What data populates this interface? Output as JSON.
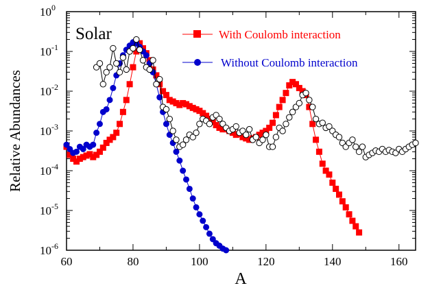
{
  "chart_data": {
    "type": "scatter",
    "xlabel": "A",
    "ylabel": "Relative Abundances",
    "xlim": [
      60,
      165
    ],
    "ylim": [
      1e-06,
      1
    ],
    "yscale": "log",
    "annotation": "Solar",
    "x_ticks": [
      "60",
      "80",
      "100",
      "120",
      "140",
      "160"
    ],
    "y_ticks": [
      {
        "base": "10",
        "exp": "0"
      },
      {
        "base": "10",
        "exp": "-1"
      },
      {
        "base": "10",
        "exp": "-2"
      },
      {
        "base": "10",
        "exp": "-3"
      },
      {
        "base": "10",
        "exp": "-4"
      },
      {
        "base": "10",
        "exp": "-5"
      },
      {
        "base": "10",
        "exp": "-6"
      }
    ],
    "legend_position": "top-right",
    "series": [
      {
        "name": "With Coulomb interaction",
        "color": "#ff0000",
        "marker": "square",
        "x": [
          60,
          61,
          62,
          63,
          64,
          65,
          66,
          67,
          68,
          69,
          70,
          71,
          72,
          73,
          74,
          75,
          76,
          77,
          78,
          79,
          80,
          81,
          82,
          83,
          84,
          85,
          86,
          87,
          88,
          89,
          90,
          91,
          92,
          93,
          94,
          95,
          96,
          97,
          98,
          99,
          100,
          101,
          102,
          103,
          104,
          105,
          106,
          107,
          108,
          109,
          110,
          111,
          112,
          113,
          114,
          115,
          116,
          117,
          118,
          119,
          120,
          121,
          122,
          123,
          124,
          125,
          126,
          127,
          128,
          129,
          130,
          131,
          132,
          133,
          134,
          135,
          136,
          137,
          138,
          139,
          140,
          141,
          142,
          143,
          144,
          145,
          146,
          147,
          148
        ],
        "y": [
          0.0004,
          0.00025,
          0.0002,
          0.00017,
          0.0002,
          0.00022,
          0.00024,
          0.00026,
          0.00022,
          0.00025,
          0.0003,
          0.00038,
          0.0005,
          0.0006,
          0.0007,
          0.0009,
          0.0015,
          0.003,
          0.006,
          0.015,
          0.04,
          0.1,
          0.16,
          0.12,
          0.09,
          0.06,
          0.035,
          0.025,
          0.015,
          0.01,
          0.008,
          0.006,
          0.0055,
          0.005,
          0.0045,
          0.005,
          0.0047,
          0.0042,
          0.0038,
          0.0035,
          0.0032,
          0.0028,
          0.0024,
          0.002,
          0.0017,
          0.0014,
          0.0012,
          0.0011,
          0.0011,
          0.001,
          0.0009,
          0.0008,
          0.00085,
          0.0007,
          0.00065,
          0.0006,
          0.00065,
          0.0007,
          0.0008,
          0.0009,
          0.001,
          0.0012,
          0.0016,
          0.0025,
          0.004,
          0.006,
          0.009,
          0.014,
          0.017,
          0.015,
          0.012,
          0.01,
          0.008,
          0.004,
          0.0015,
          0.0006,
          0.0003,
          0.00015,
          0.0001,
          8e-05,
          5e-05,
          3.5e-05,
          2.5e-05,
          1.7e-05,
          1.2e-05,
          8e-06,
          5.5e-06,
          4e-06,
          2.8e-06
        ]
      },
      {
        "name": "Without Coulomb interaction",
        "color": "#0000cc",
        "marker": "circle",
        "x": [
          60,
          61,
          62,
          63,
          64,
          65,
          66,
          67,
          68,
          69,
          70,
          71,
          72,
          73,
          74,
          75,
          76,
          77,
          78,
          79,
          80,
          81,
          82,
          83,
          84,
          85,
          86,
          87,
          88,
          89,
          90,
          91,
          92,
          93,
          94,
          95,
          96,
          97,
          98,
          99,
          100,
          101,
          102,
          103,
          104,
          105,
          106,
          107,
          108
        ],
        "y": [
          0.00045,
          0.00035,
          0.00028,
          0.0003,
          0.0004,
          0.00035,
          0.00045,
          0.0004,
          0.00045,
          0.0009,
          0.0015,
          0.003,
          0.0035,
          0.006,
          0.012,
          0.025,
          0.05,
          0.08,
          0.11,
          0.14,
          0.17,
          0.16,
          0.13,
          0.1,
          0.08,
          0.05,
          0.03,
          0.015,
          0.007,
          0.003,
          0.0015,
          0.0008,
          0.0005,
          0.0003,
          0.00018,
          0.0001,
          6e-05,
          3.5e-05,
          2e-05,
          1.2e-05,
          8e-06,
          5.5e-06,
          3.8e-06,
          2.6e-06,
          1.9e-06,
          1.5e-06,
          1.3e-06,
          1.1e-06,
          1e-06
        ]
      },
      {
        "name": "",
        "color": "#000000",
        "marker": "open-circle",
        "x": [
          69,
          70,
          71,
          72,
          73,
          74,
          75,
          76,
          77,
          78,
          79,
          80,
          81,
          82,
          83,
          84,
          85,
          86,
          87,
          88,
          89,
          90,
          91,
          92,
          93,
          94,
          95,
          96,
          97,
          98,
          99,
          100,
          101,
          102,
          103,
          104,
          105,
          106,
          107,
          108,
          109,
          110,
          111,
          112,
          113,
          114,
          115,
          116,
          117,
          118,
          119,
          120,
          121,
          122,
          123,
          124,
          125,
          126,
          127,
          128,
          129,
          130,
          131,
          132,
          133,
          134,
          135,
          136,
          137,
          138,
          139,
          140,
          141,
          142,
          143,
          144,
          145,
          146,
          147,
          148,
          149,
          150,
          151,
          152,
          153,
          154,
          155,
          156,
          157,
          158,
          159,
          160,
          161,
          162,
          163,
          164,
          165
        ],
        "y": [
          0.04,
          0.05,
          0.015,
          0.03,
          0.04,
          0.12,
          0.05,
          0.03,
          0.07,
          0.035,
          0.1,
          0.12,
          0.2,
          0.11,
          0.06,
          0.04,
          0.035,
          0.06,
          0.015,
          0.02,
          0.004,
          0.0035,
          0.002,
          0.001,
          0.0006,
          0.0004,
          0.00045,
          0.0006,
          0.0008,
          0.0007,
          0.0009,
          0.0015,
          0.002,
          0.0018,
          0.0015,
          0.0022,
          0.0025,
          0.002,
          0.0015,
          0.0012,
          0.001,
          0.0011,
          0.0013,
          0.0009,
          0.001,
          0.0008,
          0.0011,
          0.0006,
          0.0007,
          0.0005,
          0.0006,
          0.0008,
          0.0004,
          0.0004,
          0.0007,
          0.0012,
          0.001,
          0.0015,
          0.0022,
          0.003,
          0.004,
          0.005,
          0.008,
          0.009,
          0.006,
          0.004,
          0.002,
          0.0015,
          0.0016,
          0.0012,
          0.0013,
          0.001,
          0.0008,
          0.0007,
          0.0005,
          0.0004,
          0.0005,
          0.0006,
          0.0004,
          0.0003,
          0.0004,
          0.00022,
          0.00025,
          0.00028,
          0.00032,
          0.0003,
          0.00035,
          0.0003,
          0.00033,
          0.0003,
          0.00028,
          0.00035,
          0.0003,
          0.00035,
          0.0004,
          0.00045,
          0.0005
        ]
      }
    ]
  }
}
